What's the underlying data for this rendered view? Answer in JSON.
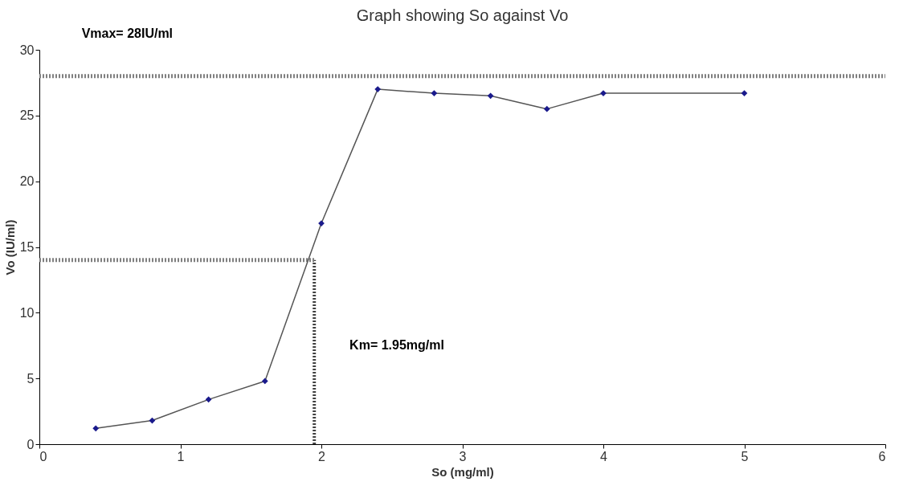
{
  "chart_data": {
    "type": "line",
    "title": "Graph showing So against Vo",
    "xlabel": "So (mg/ml)",
    "ylabel": "Vo (IU/ml)",
    "x": [
      0.4,
      0.8,
      1.2,
      1.6,
      2.0,
      2.4,
      2.8,
      3.2,
      3.6,
      4.0,
      5.0
    ],
    "series": [
      {
        "color": "#1a1a8c",
        "values": [
          1.2,
          1.8,
          3.4,
          4.8,
          16.8,
          27.0,
          26.7,
          26.5,
          25.5,
          26.7,
          26.7
        ]
      }
    ],
    "xlim": [
      0,
      6
    ],
    "xticks": [
      0,
      1,
      2,
      3,
      4,
      5,
      6
    ],
    "ylim": [
      0,
      30
    ],
    "yticks": [
      0,
      5,
      10,
      15,
      20,
      25,
      30
    ],
    "ref_lines": [
      {
        "axis": "y",
        "value": 28,
        "label": "Vmax= 28IU/ml",
        "color": "#808080",
        "line_style": "dotted"
      },
      {
        "axis": "x",
        "value": 1.95,
        "label": "Km= 1.95mg/ml",
        "color": "#404040",
        "line_style": "dotted"
      },
      {
        "axis": "y",
        "value": 14,
        "label": null,
        "color": "#808080",
        "line_style": "dotted"
      }
    ],
    "marker": "diamond",
    "grid": false,
    "legend": false
  }
}
